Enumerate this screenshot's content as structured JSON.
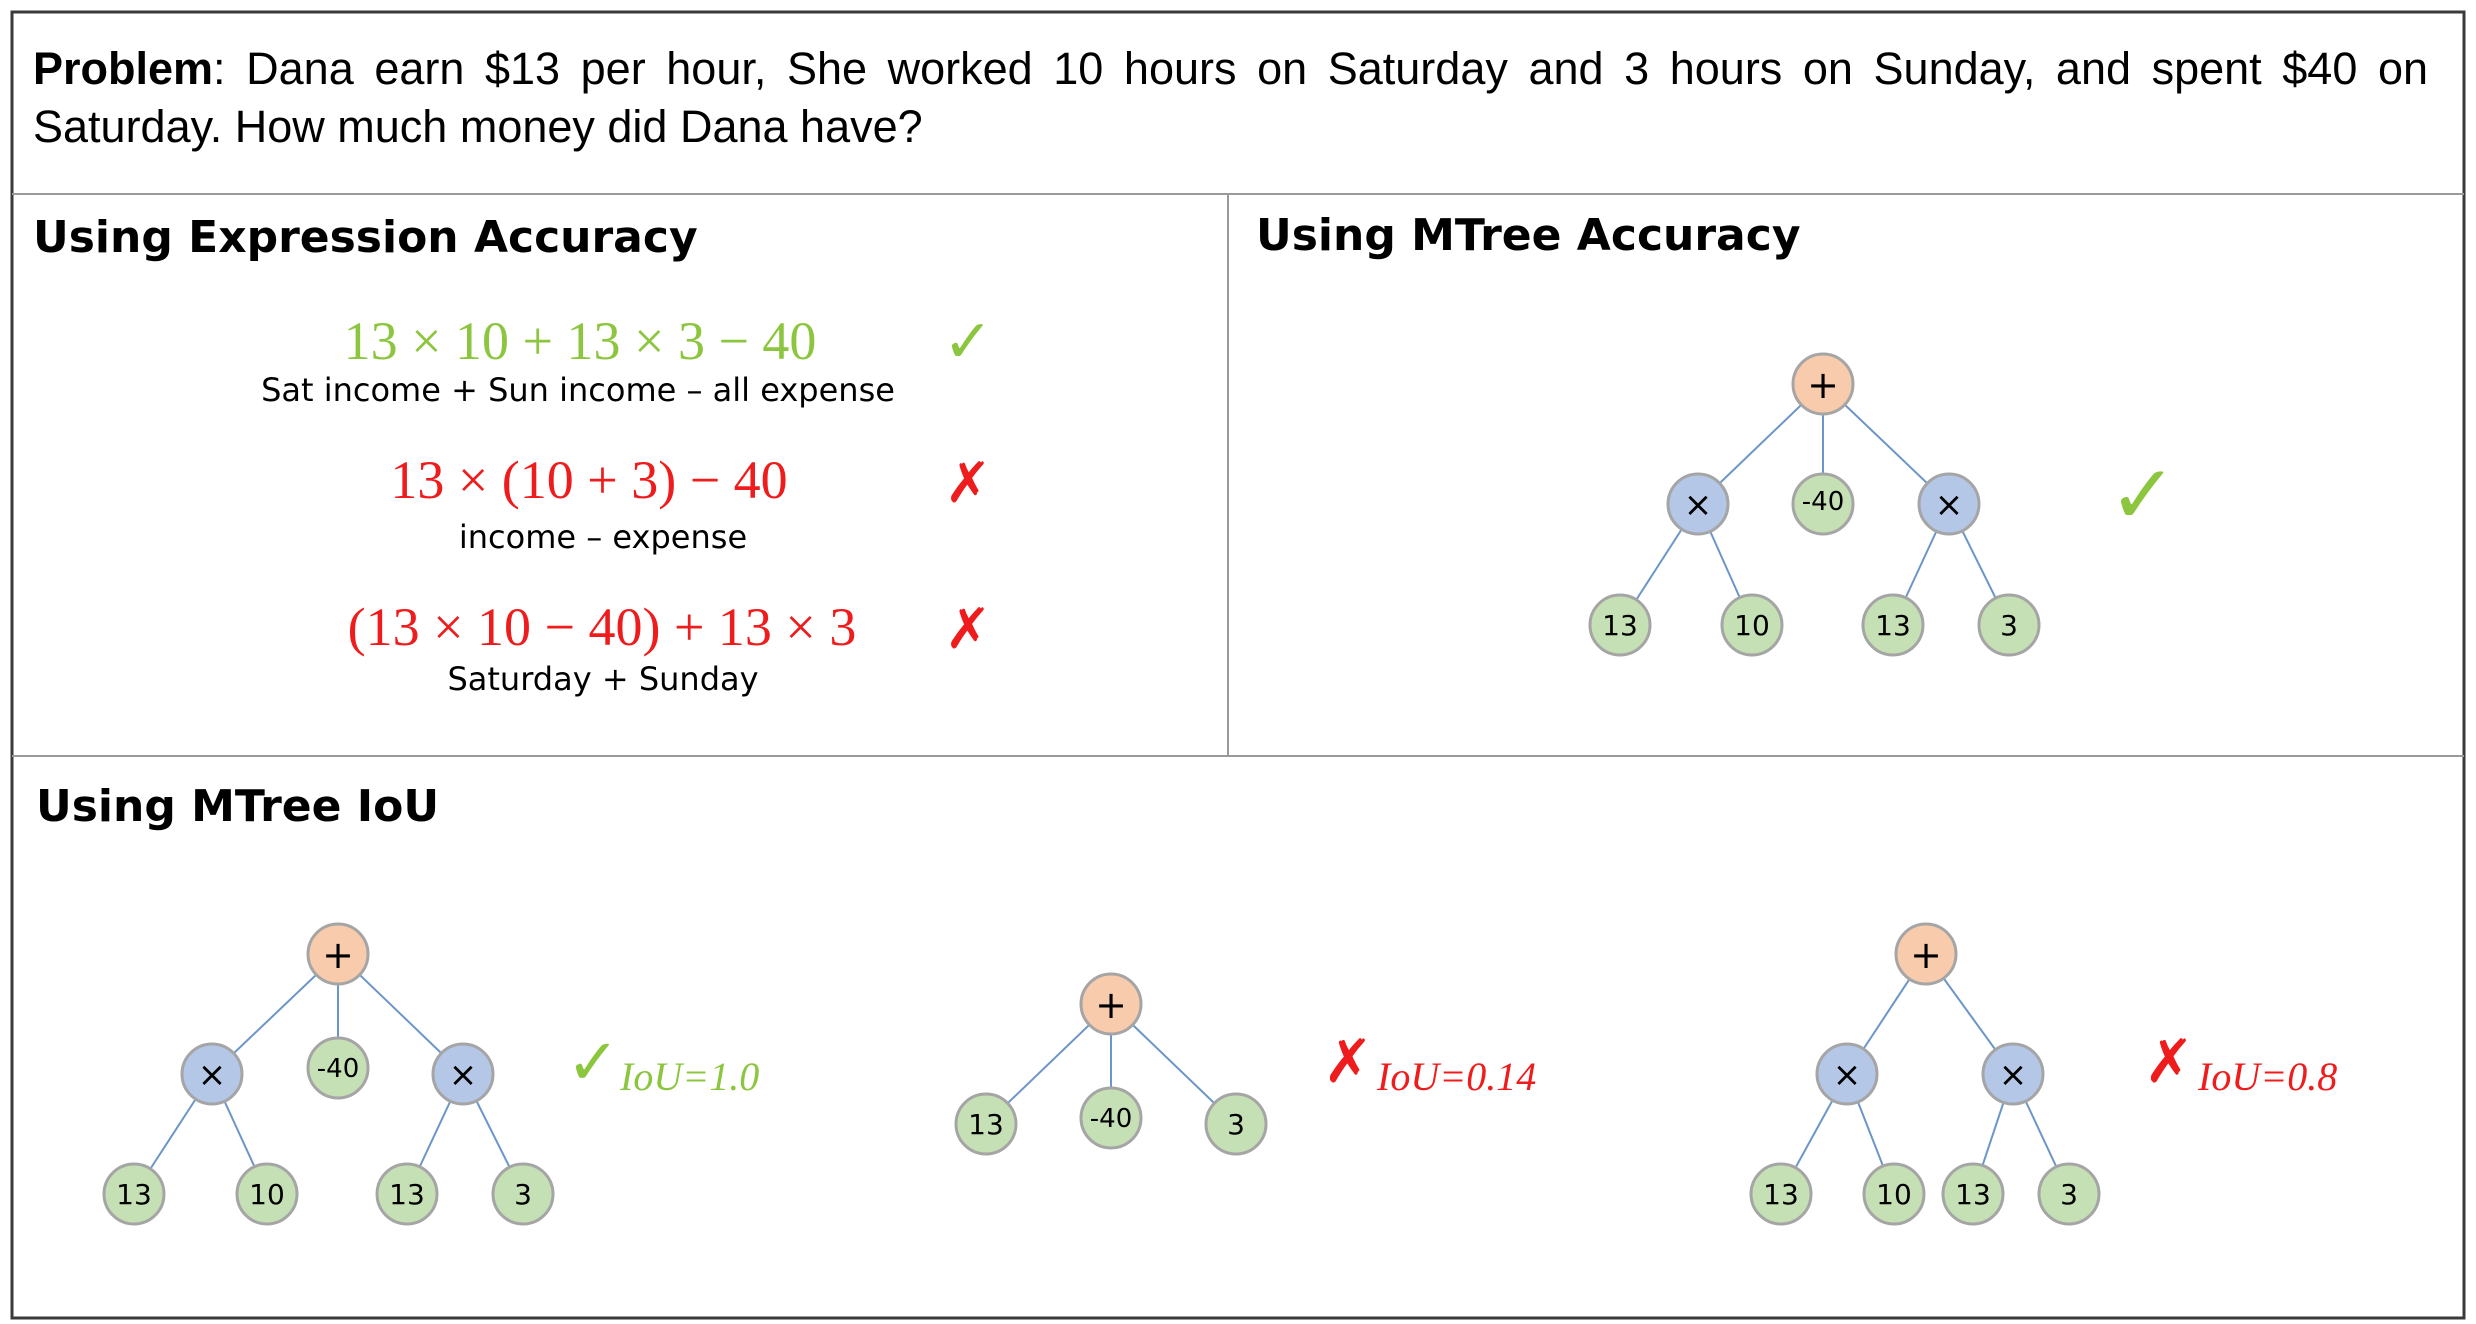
{
  "problem": {
    "label": "Problem",
    "text": ": Dana earn $13 per hour, She worked 10 hours on Saturday and 3 hours on Sunday, and spent $40 on Saturday. How much money did Dana have?"
  },
  "colors": {
    "correct": "#8cc63f",
    "wrong": "#ee1c1c",
    "op_node": "#f8cbad",
    "mul_node": "#b4c7e7",
    "leaf_node": "#c5e0b4",
    "edge": "#6c96c8",
    "border": "#999999"
  },
  "expression_panel": {
    "title": "Using Expression Accuracy",
    "items": [
      {
        "expression": "13 × 10 + 13 × 3 − 40",
        "caption": "Sat income + Sun income – all expense",
        "mark": "✓",
        "status": "correct"
      },
      {
        "expression": "13 × (10 + 3) − 40",
        "caption": "income – expense",
        "mark": "✗",
        "status": "wrong"
      },
      {
        "expression": "(13 × 10 − 40) + 13 × 3",
        "caption": "Saturday + Sunday",
        "mark": "✗",
        "status": "wrong"
      }
    ]
  },
  "mtree_accuracy_panel": {
    "title": "Using MTree Accuracy",
    "mark": "✓",
    "tree": {
      "root": "+",
      "children": [
        {
          "label": "×",
          "children": [
            "13",
            "10"
          ]
        },
        {
          "label": "-40"
        },
        {
          "label": "×",
          "children": [
            "13",
            "3"
          ]
        }
      ]
    }
  },
  "mtree_iou_panel": {
    "title": "Using MTree IoU",
    "trees": [
      {
        "mark": "✓",
        "status": "correct",
        "iou_label": "IoU=1.0",
        "root": "+",
        "mul_nodes": [
          "×",
          "×"
        ],
        "mid_leaf": "-40",
        "leaves": [
          "13",
          "10",
          "13",
          "3"
        ]
      },
      {
        "mark": "✗",
        "status": "wrong",
        "iou_label": "IoU=0.14",
        "root": "+",
        "leaves": [
          "13",
          "-40",
          "3"
        ]
      },
      {
        "mark": "✗",
        "status": "wrong",
        "iou_label": "IoU=0.8",
        "root": "+",
        "mul_nodes": [
          "×",
          "×"
        ],
        "leaves": [
          "13",
          "10",
          "13",
          "3"
        ]
      }
    ]
  }
}
